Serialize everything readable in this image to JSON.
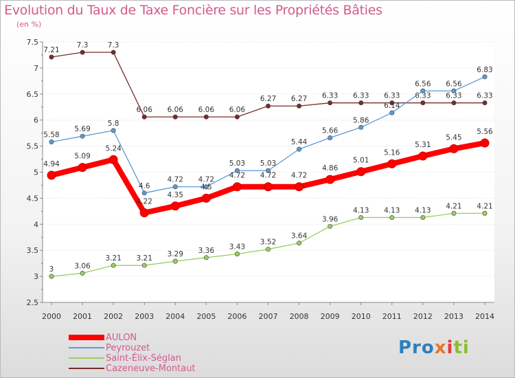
{
  "title": "Evolution du Taux de Taxe Foncière sur les Propriétés Bâties",
  "unit_label": "(en %)",
  "chart_data": {
    "type": "line",
    "title": "Evolution du Taux de Taxe Foncière sur les Propriétés Bâties",
    "ylabel": "(en %)",
    "xlabel": "",
    "ylim": [
      2.5,
      7.5
    ],
    "y_ticks": [
      "2.5",
      "3",
      "3.5",
      "4",
      "4.5",
      "5",
      "5.5",
      "6",
      "6.5",
      "7",
      "7.5"
    ],
    "categories": [
      "2000",
      "2001",
      "2002",
      "2003",
      "2004",
      "2005",
      "2006",
      "2007",
      "2008",
      "2009",
      "2010",
      "2011",
      "2012",
      "2013",
      "2014"
    ],
    "series": [
      {
        "name": "Cazeneuve-Montaut",
        "color": "#7a2a2a",
        "values": [
          7.21,
          7.3,
          7.3,
          6.06,
          6.06,
          6.06,
          6.06,
          6.27,
          6.27,
          6.33,
          6.33,
          6.33,
          6.33,
          6.33,
          6.33
        ],
        "labels": [
          "7.21",
          "7.3",
          "7.3",
          "6.06",
          "6.06",
          "6.06",
          "6.06",
          "6.27",
          "6.27",
          "6.33",
          "6.33",
          "6.33",
          "6.33",
          "6.33",
          "6.33"
        ]
      },
      {
        "name": "Saint-Élix-Séglan",
        "color": "#9acd62",
        "values": [
          3.0,
          3.06,
          3.21,
          3.21,
          3.29,
          3.36,
          3.43,
          3.52,
          3.64,
          3.96,
          4.13,
          4.13,
          4.13,
          4.21,
          4.21
        ],
        "labels": [
          "3",
          "3.06",
          "3.21",
          "3.21",
          "3.29",
          "3.36",
          "3.43",
          "3.52",
          "3.64",
          "3.96",
          "4.13",
          "4.13",
          "4.13",
          "4.21",
          "4.21"
        ]
      },
      {
        "name": "Peyrouzet",
        "color": "#5b9bd5",
        "values": [
          5.58,
          5.69,
          5.8,
          4.6,
          4.72,
          4.72,
          5.03,
          5.03,
          5.44,
          5.66,
          5.86,
          6.14,
          6.56,
          6.56,
          6.83
        ],
        "labels": [
          "5.58",
          "5.69",
          "5.8",
          "4.6",
          "4.72",
          "4.72",
          "5.03",
          "5.03",
          "5.44",
          "5.66",
          "5.86",
          "6.14",
          "6.56",
          "6.56",
          "6.83"
        ]
      },
      {
        "name": "AULON",
        "color": "#ff0000",
        "values": [
          4.94,
          5.09,
          5.24,
          4.22,
          4.35,
          4.5,
          4.72,
          4.72,
          4.72,
          4.86,
          5.01,
          5.16,
          5.31,
          5.45,
          5.56
        ],
        "labels": [
          "4.94",
          "5.09",
          "5.24",
          "4.22",
          "4.35",
          "4.5",
          "4.72",
          "4.72",
          "4.72",
          "4.86",
          "5.01",
          "5.16",
          "5.31",
          "5.45",
          "5.56"
        ]
      }
    ],
    "legend_order": [
      "AULON",
      "Peyrouzet",
      "Saint-Élix-Séglan",
      "Cazeneuve-Montaut"
    ],
    "legend_position": "bottom-left"
  },
  "logo": {
    "p1": "Pro",
    "p2": "x",
    "p3": "i",
    "p4": "ti"
  }
}
